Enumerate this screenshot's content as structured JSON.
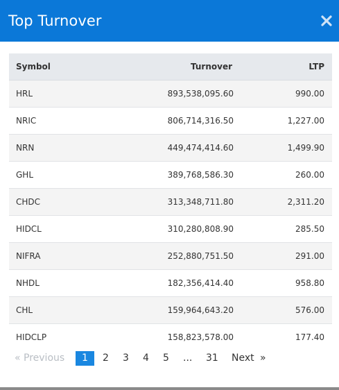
{
  "modal": {
    "title": "Top Turnover",
    "close_icon": "close-icon"
  },
  "table": {
    "headers": {
      "symbol": "Symbol",
      "turnover": "Turnover",
      "ltp": "LTP"
    },
    "rows": [
      {
        "symbol": "HRL",
        "turnover": "893,538,095.60",
        "ltp": "990.00"
      },
      {
        "symbol": "NRIC",
        "turnover": "806,714,316.50",
        "ltp": "1,227.00"
      },
      {
        "symbol": "NRN",
        "turnover": "449,474,414.60",
        "ltp": "1,499.90"
      },
      {
        "symbol": "GHL",
        "turnover": "389,768,586.30",
        "ltp": "260.00"
      },
      {
        "symbol": "CHDC",
        "turnover": "313,348,711.80",
        "ltp": "2,311.20"
      },
      {
        "symbol": "HIDCL",
        "turnover": "310,280,808.90",
        "ltp": "285.50"
      },
      {
        "symbol": "NIFRA",
        "turnover": "252,880,751.50",
        "ltp": "291.00"
      },
      {
        "symbol": "NHDL",
        "turnover": "182,356,414.40",
        "ltp": "958.80"
      },
      {
        "symbol": "CHL",
        "turnover": "159,964,643.20",
        "ltp": "576.00"
      },
      {
        "symbol": "HIDCLP",
        "turnover": "158,823,578.00",
        "ltp": "177.40"
      }
    ]
  },
  "pagination": {
    "prev_label": "« Previous",
    "next_label": "Next",
    "next_arrow": "»",
    "pages": [
      "1",
      "2",
      "3",
      "4",
      "5"
    ],
    "ellipsis": "...",
    "last_page": "31",
    "current_page": 1
  },
  "colors": {
    "header_bg": "#0b78d8",
    "active_page": "#1a87e0",
    "table_header_bg": "#e6e9ed",
    "row_alt_bg": "#f4f4f4"
  }
}
